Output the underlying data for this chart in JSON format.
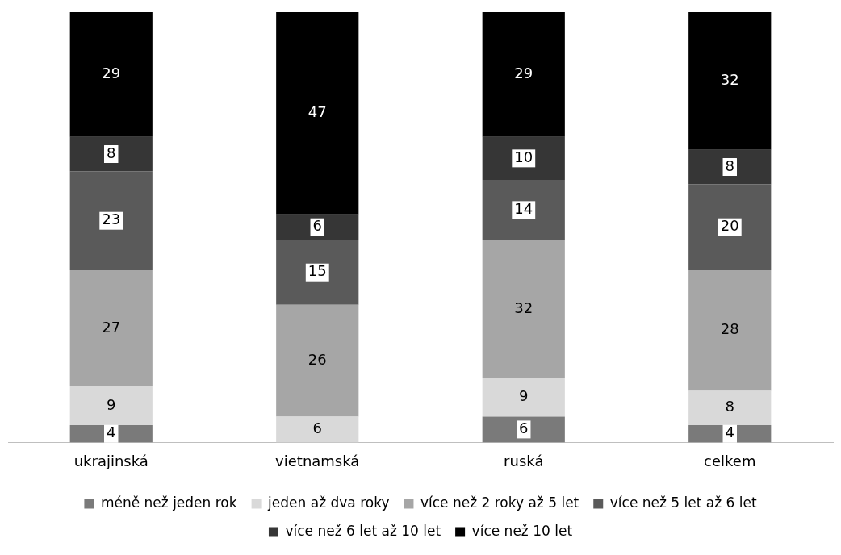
{
  "chart_data": {
    "type": "bar",
    "stacked": true,
    "categories": [
      "ukrajinská",
      "vietnamská",
      "ruská",
      "celkem"
    ],
    "series": [
      {
        "name": "méně než jeden rok",
        "color": "#7a7a7a",
        "values": [
          4,
          null,
          6,
          4
        ]
      },
      {
        "name": "jeden až dva roky",
        "color": "#d9d9d9",
        "values": [
          9,
          6,
          9,
          8
        ]
      },
      {
        "name": "více než 2 roky až 5 let",
        "color": "#a6a6a6",
        "values": [
          27,
          26,
          32,
          28
        ]
      },
      {
        "name": "více než 5 let až 6 let",
        "color": "#5a5a5a",
        "values": [
          23,
          15,
          14,
          20
        ]
      },
      {
        "name": "více než 6 let až 10 let",
        "color": "#363636",
        "values": [
          8,
          6,
          10,
          8
        ]
      },
      {
        "name": "více než 10 let",
        "color": "#000000",
        "values": [
          29,
          47,
          29,
          32
        ]
      }
    ],
    "ylim": [
      0,
      100
    ],
    "tick_labels": "x",
    "grid": false,
    "legend": "bottom",
    "data_labels": true
  }
}
